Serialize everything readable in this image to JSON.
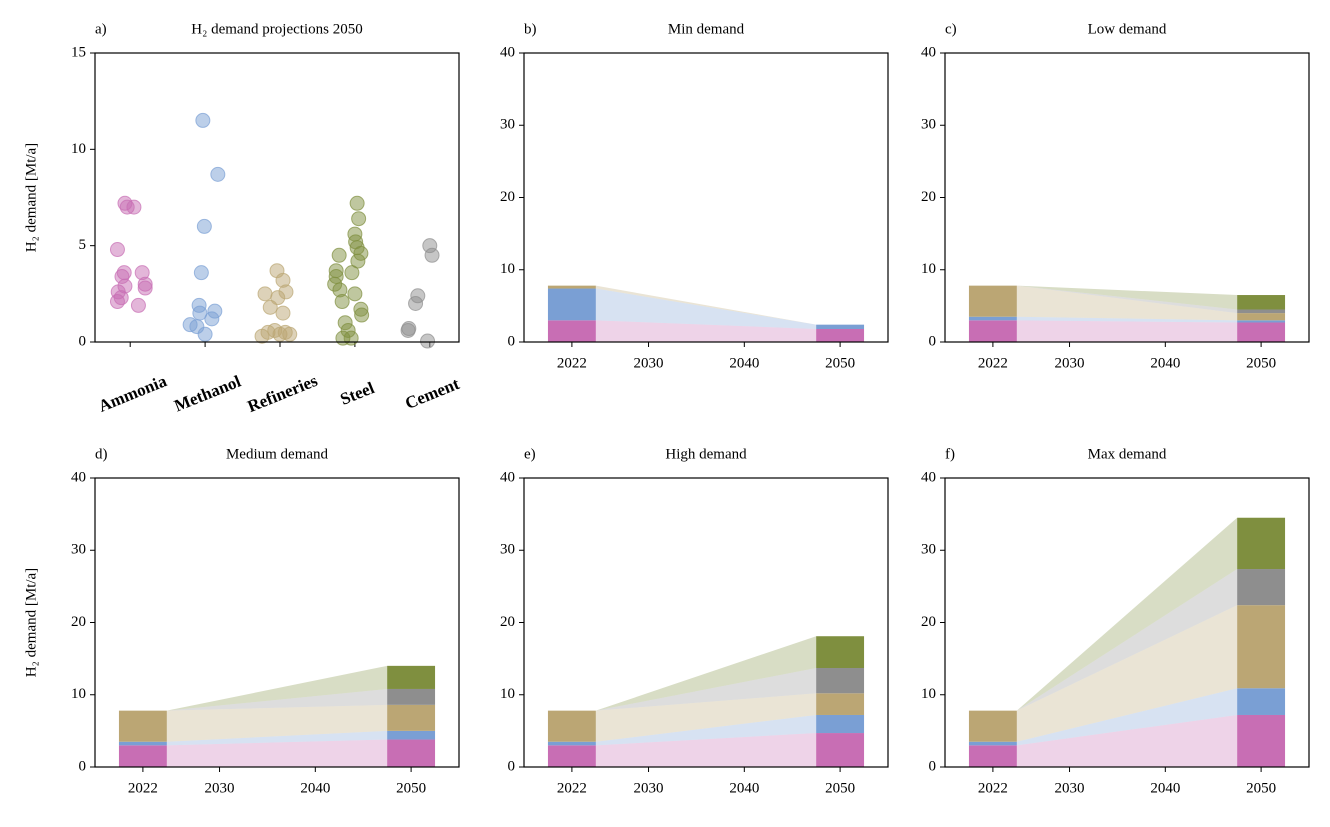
{
  "chart_data": [
    {
      "type": "scatter",
      "label": "a)",
      "title": "H₂ demand projections 2050",
      "ylabel": "H₂ demand [Mt/a]",
      "categories": [
        "Ammonia",
        "Methanol",
        "Refineries",
        "Steel",
        "Cement"
      ],
      "xlim": [
        -0.47,
        4.39
      ],
      "ylim": [
        0,
        15
      ],
      "yticks": [
        0,
        5,
        10,
        15
      ],
      "series": [
        {
          "name": "Ammonia",
          "color": "#c86eb4",
          "x": [
            -0.17,
            -0.07,
            -0.04,
            0.05,
            -0.08,
            -0.11,
            0.16,
            0.2,
            0.2,
            -0.07,
            -0.16,
            -0.12,
            -0.17,
            0.11
          ],
          "values": [
            4.8,
            7.2,
            7.0,
            7.0,
            3.6,
            3.4,
            3.6,
            3.0,
            2.8,
            2.9,
            2.6,
            2.3,
            2.1,
            1.9
          ]
        },
        {
          "name": "Methanol",
          "color": "#7a9fd4",
          "x": [
            0.97,
            1.17,
            0.99,
            0.95,
            0.92,
            0.93,
            1.13,
            1.09,
            0.8,
            0.89,
            1.0
          ],
          "values": [
            11.5,
            8.7,
            6.0,
            3.6,
            1.9,
            1.5,
            1.6,
            1.2,
            0.9,
            0.8,
            0.4
          ]
        },
        {
          "name": "Refineries",
          "color": "#bba674",
          "x": [
            1.96,
            2.04,
            1.8,
            2.08,
            1.97,
            1.87,
            2.04,
            1.93,
            1.84,
            2.07,
            1.76,
            2.0,
            2.13
          ],
          "values": [
            3.7,
            3.2,
            2.5,
            2.6,
            2.3,
            1.8,
            1.5,
            0.6,
            0.5,
            0.5,
            0.3,
            0.4,
            0.4
          ]
        },
        {
          "name": "Steel",
          "color": "#7f8f3f",
          "x": [
            2.79,
            3.03,
            3.05,
            3.0,
            3.01,
            3.03,
            3.08,
            3.04,
            2.75,
            2.75,
            2.73,
            2.96,
            2.8,
            3.0,
            2.83,
            3.08,
            3.09,
            2.87,
            2.91,
            2.95,
            2.84
          ],
          "values": [
            4.5,
            7.2,
            6.4,
            5.6,
            5.2,
            4.9,
            4.6,
            4.2,
            3.7,
            3.4,
            3.0,
            3.6,
            2.7,
            2.5,
            2.1,
            1.7,
            1.4,
            1.0,
            0.6,
            0.2,
            0.2
          ]
        },
        {
          "name": "Cement",
          "color": "#8e8e8e",
          "x": [
            4.0,
            4.03,
            3.84,
            3.81,
            3.72,
            3.71,
            3.97
          ],
          "values": [
            5.0,
            4.5,
            2.4,
            2.0,
            0.7,
            0.6,
            0.05
          ]
        }
      ]
    },
    {
      "type": "stacked",
      "label": "b)",
      "title": "Min demand",
      "x": [
        2022,
        2050
      ],
      "xlim": [
        2017,
        2055
      ],
      "xticks": [
        2022,
        2030,
        2040,
        2050
      ],
      "ylim": [
        0,
        40
      ],
      "yticks": [
        0,
        10,
        20,
        30,
        40
      ],
      "series": [
        {
          "name": "Ammonia",
          "color": "#c86eb4",
          "values": [
            3.0,
            1.8
          ]
        },
        {
          "name": "Methanol",
          "color": "#7a9fd4",
          "values": [
            4.4,
            0.6
          ]
        },
        {
          "name": "Refineries",
          "color": "#bba674",
          "values": [
            0.4,
            0
          ]
        },
        {
          "name": "Cement",
          "color": "#8e8e8e",
          "values": [
            0,
            0
          ]
        },
        {
          "name": "Steel",
          "color": "#7f8f3f",
          "values": [
            0,
            0
          ]
        }
      ]
    },
    {
      "type": "stacked",
      "label": "c)",
      "title": "Low demand",
      "x": [
        2022,
        2050
      ],
      "xlim": [
        2017,
        2055
      ],
      "xticks": [
        2022,
        2030,
        2040,
        2050
      ],
      "ylim": [
        0,
        40
      ],
      "yticks": [
        0,
        10,
        20,
        30,
        40
      ],
      "series": [
        {
          "name": "Ammonia",
          "color": "#c86eb4",
          "values": [
            3.0,
            2.7
          ]
        },
        {
          "name": "Methanol",
          "color": "#7a9fd4",
          "values": [
            0.5,
            0.3
          ]
        },
        {
          "name": "Refineries",
          "color": "#bba674",
          "values": [
            4.3,
            1.0
          ]
        },
        {
          "name": "Cement",
          "color": "#8e8e8e",
          "values": [
            0,
            0.5
          ]
        },
        {
          "name": "Steel",
          "color": "#7f8f3f",
          "values": [
            0,
            2.0
          ]
        }
      ]
    },
    {
      "type": "stacked",
      "label": "d)",
      "title": "Medium demand",
      "ylabel": "H₂ demand [Mt/a]",
      "x": [
        2022,
        2050
      ],
      "xlim": [
        2017,
        2055
      ],
      "xticks": [
        2022,
        2030,
        2040,
        2050
      ],
      "ylim": [
        0,
        40
      ],
      "yticks": [
        0,
        10,
        20,
        30,
        40
      ],
      "series": [
        {
          "name": "Ammonia",
          "color": "#c86eb4",
          "values": [
            3.0,
            3.8
          ]
        },
        {
          "name": "Methanol",
          "color": "#7a9fd4",
          "values": [
            0.5,
            1.2
          ]
        },
        {
          "name": "Refineries",
          "color": "#bba674",
          "values": [
            4.3,
            3.6
          ]
        },
        {
          "name": "Cement",
          "color": "#8e8e8e",
          "values": [
            0,
            2.2
          ]
        },
        {
          "name": "Steel",
          "color": "#7f8f3f",
          "values": [
            0,
            3.2
          ]
        }
      ]
    },
    {
      "type": "stacked",
      "label": "e)",
      "title": "High demand",
      "x": [
        2022,
        2050
      ],
      "xlim": [
        2017,
        2055
      ],
      "xticks": [
        2022,
        2030,
        2040,
        2050
      ],
      "ylim": [
        0,
        40
      ],
      "yticks": [
        0,
        10,
        20,
        30,
        40
      ],
      "series": [
        {
          "name": "Ammonia",
          "color": "#c86eb4",
          "values": [
            3.0,
            4.7
          ]
        },
        {
          "name": "Methanol",
          "color": "#7a9fd4",
          "values": [
            0.5,
            2.5
          ]
        },
        {
          "name": "Refineries",
          "color": "#bba674",
          "values": [
            4.3,
            3.0
          ]
        },
        {
          "name": "Cement",
          "color": "#8e8e8e",
          "values": [
            0,
            3.5
          ]
        },
        {
          "name": "Steel",
          "color": "#7f8f3f",
          "values": [
            0,
            4.4
          ]
        }
      ]
    },
    {
      "type": "stacked",
      "label": "f)",
      "title": "Max demand",
      "x": [
        2022,
        2050
      ],
      "xlim": [
        2017,
        2055
      ],
      "xticks": [
        2022,
        2030,
        2040,
        2050
      ],
      "ylim": [
        0,
        40
      ],
      "yticks": [
        0,
        10,
        20,
        30,
        40
      ],
      "series": [
        {
          "name": "Ammonia",
          "color": "#c86eb4",
          "values": [
            3.0,
            7.2
          ]
        },
        {
          "name": "Methanol",
          "color": "#7a9fd4",
          "values": [
            0.5,
            3.7
          ]
        },
        {
          "name": "Refineries",
          "color": "#bba674",
          "values": [
            4.3,
            11.5
          ]
        },
        {
          "name": "Cement",
          "color": "#8e8e8e",
          "values": [
            0,
            5.0
          ]
        },
        {
          "name": "Steel",
          "color": "#7f8f3f",
          "values": [
            0,
            7.1
          ]
        }
      ]
    }
  ]
}
